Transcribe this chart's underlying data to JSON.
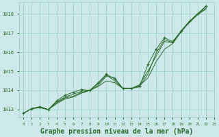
{
  "bg_color": "#cce8e8",
  "grid_color": "#99cccc",
  "line_color": "#2d6a2d",
  "xlabel": "Graphe pression niveau de la mer (hPa)",
  "xlim": [
    -0.5,
    23
  ],
  "ylim": [
    1012.6,
    1018.6
  ],
  "yticks": [
    1013,
    1014,
    1015,
    1016,
    1017,
    1018
  ],
  "xticks": [
    0,
    1,
    2,
    3,
    4,
    5,
    6,
    7,
    8,
    9,
    10,
    11,
    12,
    13,
    14,
    15,
    16,
    17,
    18,
    19,
    20,
    21,
    22,
    23
  ],
  "series": [
    {
      "x": [
        0,
        1,
        2,
        3,
        4,
        5,
        6,
        7,
        8,
        9,
        10,
        11,
        12,
        13,
        14,
        15,
        16,
        17,
        18,
        19,
        20,
        21,
        22
      ],
      "y": [
        1012.8,
        1013.05,
        1013.1,
        1013.0,
        1013.3,
        1013.55,
        1013.65,
        1013.85,
        1014.0,
        1014.25,
        1014.75,
        1014.65,
        1014.1,
        1014.1,
        1014.25,
        1014.65,
        1015.5,
        1016.15,
        1016.45,
        1017.05,
        1017.55,
        1017.95,
        1018.25
      ],
      "marker": false
    },
    {
      "x": [
        0,
        1,
        2,
        3,
        4,
        5,
        6,
        7,
        8,
        9,
        10,
        11,
        12,
        13,
        14,
        15,
        16,
        17,
        18,
        19,
        20,
        21,
        22
      ],
      "y": [
        1012.8,
        1013.05,
        1013.1,
        1013.0,
        1013.35,
        1013.6,
        1013.7,
        1013.9,
        1014.0,
        1014.2,
        1014.5,
        1014.4,
        1014.1,
        1014.1,
        1014.3,
        1015.0,
        1015.8,
        1016.55,
        1016.5,
        1017.1,
        1017.6,
        1018.0,
        1018.3
      ],
      "marker": false
    },
    {
      "x": [
        0,
        1,
        2,
        3,
        4,
        5,
        6,
        7,
        8,
        9,
        10,
        11,
        12,
        13,
        14,
        15,
        16,
        17,
        18,
        19,
        20,
        21,
        22
      ],
      "y": [
        1012.8,
        1013.05,
        1013.15,
        1013.0,
        1013.4,
        1013.65,
        1013.8,
        1013.95,
        1014.0,
        1014.35,
        1014.8,
        1014.5,
        1014.1,
        1014.1,
        1014.2,
        1014.85,
        1015.95,
        1016.65,
        1016.5,
        1017.1,
        1017.6,
        1018.0,
        1018.4
      ],
      "marker": false
    },
    {
      "x": [
        0,
        1,
        2,
        3,
        4,
        5,
        6,
        7,
        8,
        9,
        10,
        11,
        12,
        13,
        14,
        15,
        16,
        17,
        18,
        19,
        20,
        21,
        22
      ],
      "y": [
        1012.8,
        1013.05,
        1013.15,
        1013.0,
        1013.45,
        1013.75,
        1013.9,
        1014.05,
        1014.0,
        1014.4,
        1014.85,
        1014.6,
        1014.1,
        1014.1,
        1014.2,
        1015.35,
        1016.15,
        1016.75,
        1016.55,
        1017.1,
        1017.6,
        1018.0,
        1018.4
      ],
      "marker": true
    }
  ]
}
